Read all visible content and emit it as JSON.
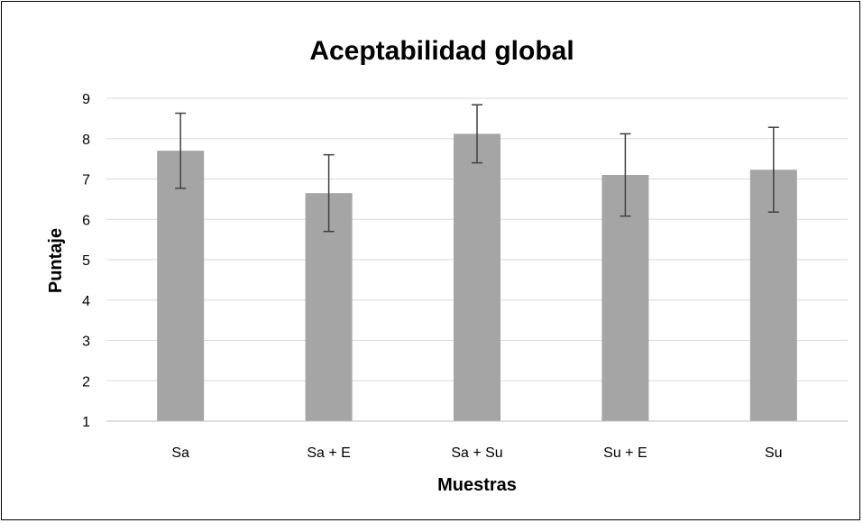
{
  "chart_data": {
    "type": "bar",
    "title": "Aceptabilidad global",
    "xlabel": "Muestras",
    "ylabel": "Puntaje",
    "categories": [
      "Sa",
      "Sa + E",
      "Sa + Su",
      "Su + E",
      "Su"
    ],
    "values": [
      7.7,
      6.65,
      8.12,
      7.1,
      7.23
    ],
    "error": [
      0.93,
      0.95,
      0.72,
      1.02,
      1.05
    ],
    "ylim": [
      1,
      9
    ],
    "yticks": [
      "1",
      "2",
      "3",
      "4",
      "5",
      "6",
      "7",
      "8",
      "9"
    ],
    "grid": true,
    "legend": "none",
    "colors": {
      "bar": "#a5a5a5",
      "grid": "#d9d9d9",
      "error": "#404040",
      "axis": "#bfbfbf"
    }
  }
}
